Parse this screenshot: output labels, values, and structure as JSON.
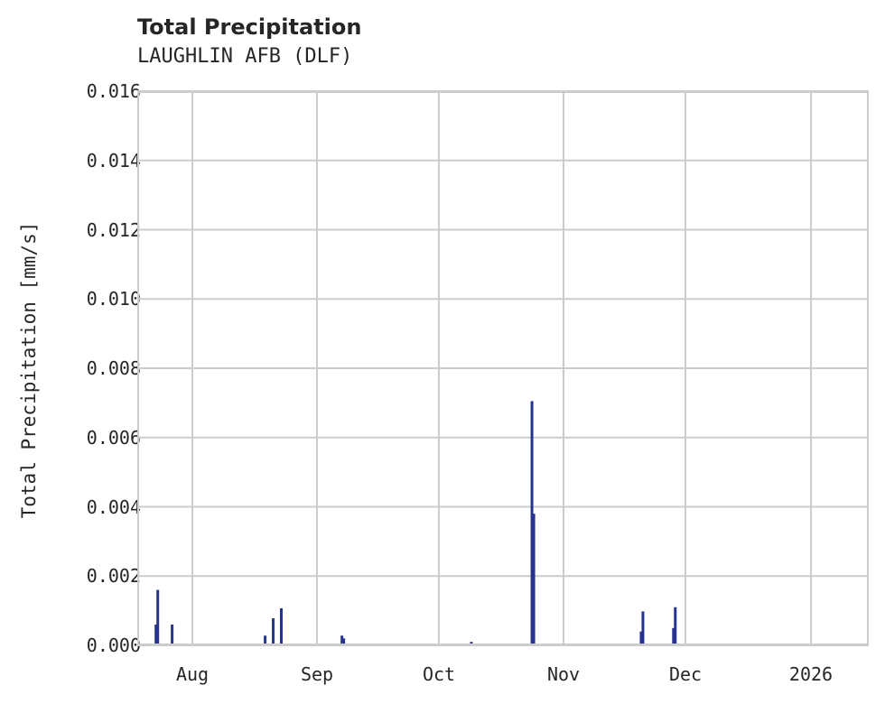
{
  "header": {
    "title": "Total Precipitation",
    "subtitle": "LAUGHLIN AFB (DLF)"
  },
  "colors": {
    "bar": "#26338f",
    "grid": "#cccccc",
    "text": "#262626"
  },
  "axes": {
    "ylabel": "Total Precipitation [mm/s]",
    "yticks": [
      "0.000",
      "0.002",
      "0.004",
      "0.006",
      "0.008",
      "0.010",
      "0.012",
      "0.014",
      "0.016"
    ],
    "xticks": [
      "Aug",
      "Sep",
      "Oct",
      "Nov",
      "Dec",
      "2026"
    ]
  },
  "chart_data": {
    "type": "bar",
    "title": "Total Precipitation",
    "subtitle": "LAUGHLIN AFB (DLF)",
    "xlabel": "",
    "ylabel": "Total Precipitation [mm/s]",
    "ylim": [
      0,
      0.016
    ],
    "xlim": [
      "2025-07-19",
      "2026-01-15"
    ],
    "grid": true,
    "legend": null,
    "x_tick_labels": [
      "Aug",
      "Sep",
      "Oct",
      "Nov",
      "Dec",
      "2026"
    ],
    "y_tick_labels": [
      "0.000",
      "0.002",
      "0.004",
      "0.006",
      "0.008",
      "0.010",
      "0.012",
      "0.014",
      "0.016"
    ],
    "series": [
      {
        "name": "Total Precipitation",
        "points": [
          {
            "date": "2025-07-23",
            "value": 0.0006
          },
          {
            "date": "2025-07-23",
            "value": 0.0016
          },
          {
            "date": "2025-07-27",
            "value": 0.0006
          },
          {
            "date": "2025-08-19",
            "value": 0.00028
          },
          {
            "date": "2025-08-21",
            "value": 0.00078
          },
          {
            "date": "2025-08-23",
            "value": 0.00107
          },
          {
            "date": "2025-09-07",
            "value": 0.00028
          },
          {
            "date": "2025-09-07",
            "value": 0.0002
          },
          {
            "date": "2025-09-29",
            "value": 5e-05
          },
          {
            "date": "2025-10-09",
            "value": 0.0001
          },
          {
            "date": "2025-10-24",
            "value": 0.00705
          },
          {
            "date": "2025-10-24",
            "value": 0.0038
          },
          {
            "date": "2025-11-20",
            "value": 0.0004
          },
          {
            "date": "2025-11-20",
            "value": 0.00098
          },
          {
            "date": "2025-11-28",
            "value": 0.0005
          },
          {
            "date": "2025-11-28",
            "value": 0.0011
          }
        ]
      }
    ]
  }
}
